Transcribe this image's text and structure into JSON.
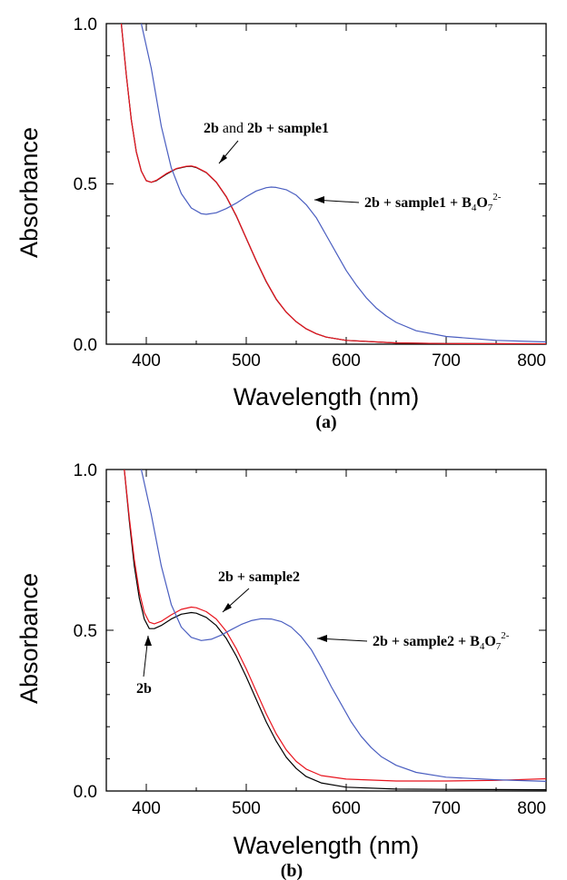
{
  "chart_data": [
    {
      "panel": "(a)",
      "type": "line",
      "xlabel": "Wavelength (nm)",
      "ylabel": "Absorbance",
      "xlim": [
        360,
        800
      ],
      "ylim": [
        0.0,
        1.0
      ],
      "x_ticks": [
        "400",
        "500",
        "600",
        "700",
        "800"
      ],
      "y_ticks": [
        "0.0",
        "0.5",
        "1.0"
      ],
      "series": [
        {
          "color": "#000000",
          "points": [
            [
              375,
              1.0
            ],
            [
              380,
              0.84
            ],
            [
              385,
              0.7
            ],
            [
              390,
              0.6
            ],
            [
              395,
              0.54
            ],
            [
              400,
              0.51
            ],
            [
              405,
              0.505
            ],
            [
              410,
              0.51
            ],
            [
              420,
              0.53
            ],
            [
              430,
              0.547
            ],
            [
              440,
              0.554
            ],
            [
              445,
              0.555
            ],
            [
              450,
              0.551
            ],
            [
              460,
              0.535
            ],
            [
              470,
              0.505
            ],
            [
              480,
              0.46
            ],
            [
              490,
              0.4
            ],
            [
              500,
              0.33
            ],
            [
              510,
              0.26
            ],
            [
              520,
              0.195
            ],
            [
              530,
              0.14
            ],
            [
              540,
              0.1
            ],
            [
              550,
              0.07
            ],
            [
              560,
              0.048
            ],
            [
              570,
              0.033
            ],
            [
              580,
              0.022
            ],
            [
              600,
              0.012
            ],
            [
              650,
              0.004
            ],
            [
              700,
              0.002
            ],
            [
              800,
              0.001
            ]
          ]
        },
        {
          "color": "#e8141e",
          "points": [
            [
              375,
              1.0
            ],
            [
              380,
              0.84
            ],
            [
              385,
              0.7
            ],
            [
              390,
              0.6
            ],
            [
              395,
              0.54
            ],
            [
              400,
              0.51
            ],
            [
              405,
              0.505
            ],
            [
              410,
              0.511
            ],
            [
              420,
              0.532
            ],
            [
              430,
              0.548
            ],
            [
              440,
              0.555
            ],
            [
              445,
              0.556
            ],
            [
              450,
              0.552
            ],
            [
              460,
              0.536
            ],
            [
              470,
              0.506
            ],
            [
              480,
              0.461
            ],
            [
              490,
              0.401
            ],
            [
              500,
              0.331
            ],
            [
              510,
              0.261
            ],
            [
              520,
              0.196
            ],
            [
              530,
              0.141
            ],
            [
              540,
              0.1
            ],
            [
              550,
              0.07
            ],
            [
              560,
              0.048
            ],
            [
              570,
              0.033
            ],
            [
              580,
              0.022
            ],
            [
              600,
              0.012
            ],
            [
              650,
              0.004
            ],
            [
              700,
              0.002
            ],
            [
              800,
              0.001
            ]
          ]
        },
        {
          "color": "#4a5ec0",
          "points": [
            [
              395,
              1.0
            ],
            [
              405,
              0.86
            ],
            [
              415,
              0.68
            ],
            [
              425,
              0.55
            ],
            [
              435,
              0.47
            ],
            [
              445,
              0.425
            ],
            [
              455,
              0.407
            ],
            [
              460,
              0.405
            ],
            [
              470,
              0.41
            ],
            [
              480,
              0.423
            ],
            [
              490,
              0.44
            ],
            [
              500,
              0.46
            ],
            [
              510,
              0.478
            ],
            [
              520,
              0.488
            ],
            [
              525,
              0.49
            ],
            [
              530,
              0.489
            ],
            [
              540,
              0.482
            ],
            [
              550,
              0.465
            ],
            [
              560,
              0.435
            ],
            [
              570,
              0.395
            ],
            [
              580,
              0.34
            ],
            [
              590,
              0.285
            ],
            [
              600,
              0.23
            ],
            [
              610,
              0.185
            ],
            [
              620,
              0.145
            ],
            [
              630,
              0.113
            ],
            [
              640,
              0.088
            ],
            [
              650,
              0.068
            ],
            [
              670,
              0.042
            ],
            [
              700,
              0.024
            ],
            [
              750,
              0.012
            ],
            [
              800,
              0.007
            ]
          ]
        }
      ],
      "annotations": [
        {
          "text": "2b and  2b + sample1"
        },
        {
          "text": "2b + sample1 + B4O72-"
        }
      ]
    },
    {
      "panel": "(b)",
      "type": "line",
      "xlabel": "Wavelength (nm)",
      "ylabel": "Absorbance",
      "xlim": [
        360,
        800
      ],
      "ylim": [
        0.0,
        1.0
      ],
      "x_ticks": [
        "400",
        "500",
        "600",
        "700",
        "800"
      ],
      "y_ticks": [
        "0.0",
        "0.5",
        "1.0"
      ],
      "series": [
        {
          "color": "#000000",
          "points": [
            [
              378,
              1.0
            ],
            [
              383,
              0.84
            ],
            [
              388,
              0.7
            ],
            [
              393,
              0.6
            ],
            [
              398,
              0.535
            ],
            [
              403,
              0.505
            ],
            [
              408,
              0.505
            ],
            [
              415,
              0.515
            ],
            [
              425,
              0.535
            ],
            [
              435,
              0.55
            ],
            [
              445,
              0.555
            ],
            [
              450,
              0.553
            ],
            [
              460,
              0.54
            ],
            [
              470,
              0.515
            ],
            [
              480,
              0.475
            ],
            [
              490,
              0.42
            ],
            [
              500,
              0.355
            ],
            [
              510,
              0.285
            ],
            [
              520,
              0.215
            ],
            [
              530,
              0.155
            ],
            [
              540,
              0.105
            ],
            [
              550,
              0.07
            ],
            [
              560,
              0.045
            ],
            [
              575,
              0.025
            ],
            [
              600,
              0.012
            ],
            [
              650,
              0.006
            ],
            [
              700,
              0.005
            ],
            [
              800,
              0.004
            ]
          ]
        },
        {
          "color": "#e8141e",
          "points": [
            [
              378,
              1.0
            ],
            [
              383,
              0.85
            ],
            [
              388,
              0.72
            ],
            [
              393,
              0.62
            ],
            [
              398,
              0.555
            ],
            [
              403,
              0.525
            ],
            [
              408,
              0.52
            ],
            [
              415,
              0.528
            ],
            [
              425,
              0.548
            ],
            [
              435,
              0.565
            ],
            [
              445,
              0.572
            ],
            [
              450,
              0.57
            ],
            [
              460,
              0.558
            ],
            [
              470,
              0.535
            ],
            [
              480,
              0.497
            ],
            [
              490,
              0.443
            ],
            [
              500,
              0.38
            ],
            [
              510,
              0.31
            ],
            [
              520,
              0.24
            ],
            [
              530,
              0.178
            ],
            [
              540,
              0.128
            ],
            [
              550,
              0.092
            ],
            [
              560,
              0.068
            ],
            [
              575,
              0.048
            ],
            [
              600,
              0.037
            ],
            [
              650,
              0.031
            ],
            [
              700,
              0.031
            ],
            [
              750,
              0.033
            ],
            [
              800,
              0.038
            ]
          ]
        },
        {
          "color": "#4a5ec0",
          "points": [
            [
              395,
              1.0
            ],
            [
              405,
              0.86
            ],
            [
              415,
              0.7
            ],
            [
              425,
              0.58
            ],
            [
              435,
              0.51
            ],
            [
              445,
              0.478
            ],
            [
              455,
              0.468
            ],
            [
              465,
              0.472
            ],
            [
              475,
              0.485
            ],
            [
              485,
              0.502
            ],
            [
              495,
              0.518
            ],
            [
              505,
              0.53
            ],
            [
              515,
              0.536
            ],
            [
              525,
              0.535
            ],
            [
              535,
              0.527
            ],
            [
              545,
              0.51
            ],
            [
              555,
              0.48
            ],
            [
              565,
              0.44
            ],
            [
              575,
              0.385
            ],
            [
              585,
              0.325
            ],
            [
              595,
              0.27
            ],
            [
              605,
              0.215
            ],
            [
              615,
              0.17
            ],
            [
              625,
              0.135
            ],
            [
              635,
              0.107
            ],
            [
              650,
              0.08
            ],
            [
              670,
              0.058
            ],
            [
              700,
              0.043
            ],
            [
              750,
              0.035
            ],
            [
              800,
              0.03
            ]
          ]
        }
      ],
      "annotations": [
        {
          "text": "2b + sample2"
        },
        {
          "text": "2b + sample2 + B4O72-"
        },
        {
          "text": "2b"
        }
      ]
    }
  ],
  "labels": {
    "a": {
      "ylabel": "Absorbance",
      "xlabel": "Wavelength (nm)",
      "panel": "(a)",
      "ann1_part1": "2b",
      "ann1_part2": "and",
      "ann1_part3": "2b + sample1",
      "ann2_main": "2b + sample1 + B",
      "ann2_sub1": "4",
      "ann2_mid": "O",
      "ann2_sub2": "7",
      "ann2_sup": "2-"
    },
    "b": {
      "ylabel": "Absorbance",
      "xlabel": "Wavelength (nm)",
      "panel": "(b)",
      "ann1": "2b + sample2",
      "ann2_main": "2b + sample2 + B",
      "ann2_sub1": "4",
      "ann2_mid": "O",
      "ann2_sub2": "7",
      "ann2_sup": "2-",
      "ann3": "2b"
    }
  }
}
